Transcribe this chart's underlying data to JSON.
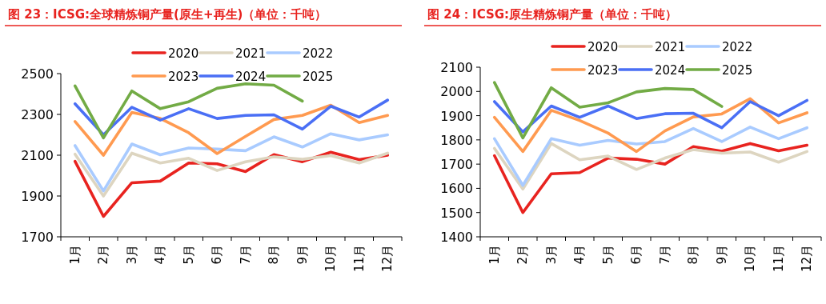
{
  "chart_data": [
    {
      "type": "line",
      "title": "图 23：ICSG:全球精炼铜产量(原生+再生)（单位：千吨）",
      "categories": [
        "1月",
        "2月",
        "3月",
        "4月",
        "5月",
        "6月",
        "7月",
        "8月",
        "9月",
        "10月",
        "11月",
        "12月"
      ],
      "ylim": [
        1700,
        2500
      ],
      "yticks": [
        1700,
        1900,
        2100,
        2300,
        2500
      ],
      "grid": false,
      "legend": "top",
      "marker": "none",
      "line_style": "solid",
      "series": [
        {
          "name": "2020",
          "color": "#e8231f",
          "values": [
            2070,
            1800,
            1965,
            1973,
            2062,
            2058,
            2020,
            2103,
            2068,
            2115,
            2078,
            2100
          ]
        },
        {
          "name": "2021",
          "color": "#ddd5c0",
          "values": [
            2105,
            1900,
            2110,
            2062,
            2085,
            2025,
            2068,
            2092,
            2080,
            2098,
            2062,
            2110
          ]
        },
        {
          "name": "2022",
          "color": "#a9cbff",
          "values": [
            2147,
            1925,
            2155,
            2102,
            2135,
            2130,
            2122,
            2190,
            2140,
            2205,
            2175,
            2200
          ]
        },
        {
          "name": "2023",
          "color": "#ff9a50",
          "values": [
            2265,
            2100,
            2310,
            2280,
            2210,
            2108,
            2192,
            2275,
            2295,
            2345,
            2260,
            2295
          ]
        },
        {
          "name": "2024",
          "color": "#4a6ff5",
          "values": [
            2352,
            2200,
            2335,
            2272,
            2328,
            2280,
            2295,
            2298,
            2228,
            2340,
            2287,
            2370
          ]
        },
        {
          "name": "2025",
          "color": "#72ab45",
          "values": [
            2440,
            2185,
            2415,
            2328,
            2362,
            2428,
            2450,
            2443,
            2365,
            null,
            null,
            null
          ]
        }
      ]
    },
    {
      "type": "line",
      "title": "图 24：ICSG:原生精炼铜产量（单位：千吨）",
      "categories": [
        "1月",
        "2月",
        "3月",
        "4月",
        "5月",
        "6月",
        "7月",
        "8月",
        "9月",
        "10月",
        "11月",
        "12月"
      ],
      "ylim": [
        1400,
        2100
      ],
      "yticks": [
        1400,
        1500,
        1600,
        1700,
        1800,
        1900,
        2000,
        2100
      ],
      "grid": false,
      "legend": "top",
      "marker": "none",
      "line_style": "solid",
      "series": [
        {
          "name": "2020",
          "color": "#e8231f",
          "values": [
            1735,
            1500,
            1660,
            1665,
            1725,
            1720,
            1700,
            1772,
            1753,
            1785,
            1755,
            1778
          ]
        },
        {
          "name": "2021",
          "color": "#ddd5c0",
          "values": [
            1765,
            1597,
            1785,
            1718,
            1733,
            1678,
            1725,
            1760,
            1745,
            1750,
            1708,
            1752
          ]
        },
        {
          "name": "2022",
          "color": "#a9cbff",
          "values": [
            1805,
            1612,
            1805,
            1778,
            1798,
            1783,
            1793,
            1847,
            1793,
            1853,
            1805,
            1850
          ]
        },
        {
          "name": "2023",
          "color": "#ff9a50",
          "values": [
            1893,
            1752,
            1922,
            1880,
            1828,
            1752,
            1837,
            1895,
            1907,
            1970,
            1870,
            1912
          ]
        },
        {
          "name": "2024",
          "color": "#4a6ff5",
          "values": [
            1958,
            1833,
            1940,
            1893,
            1940,
            1888,
            1908,
            1910,
            1850,
            1958,
            1900,
            1963
          ]
        },
        {
          "name": "2025",
          "color": "#72ab45",
          "values": [
            2037,
            1808,
            2015,
            1935,
            1953,
            1998,
            2012,
            2008,
            1938,
            null,
            null,
            null
          ]
        }
      ]
    }
  ]
}
